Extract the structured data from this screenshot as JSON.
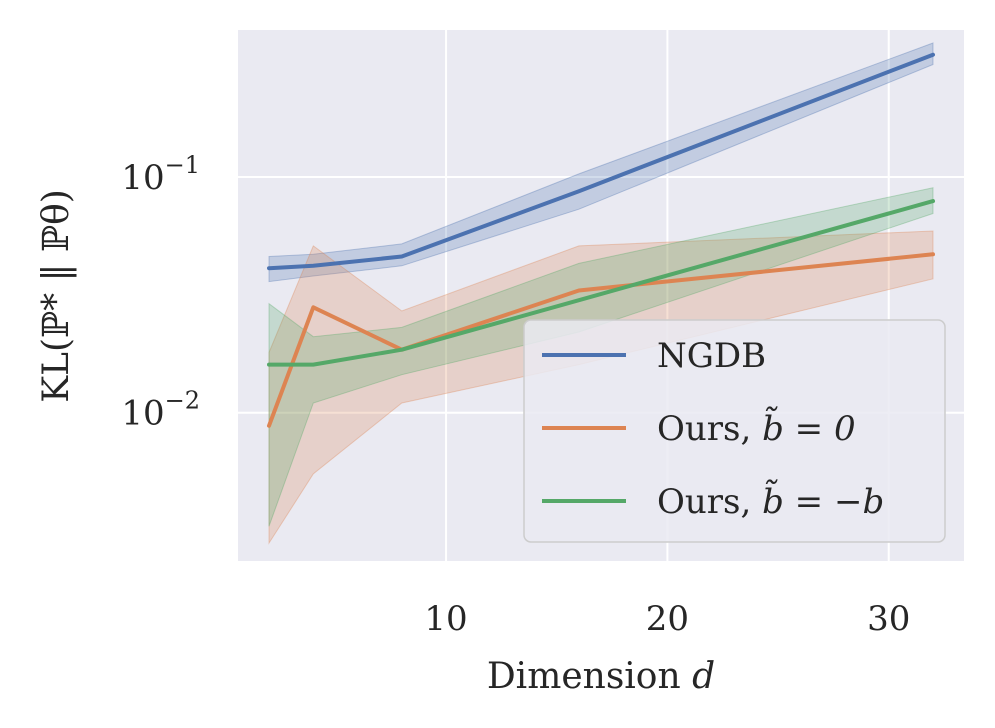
{
  "chart_data": {
    "type": "line",
    "title": "",
    "xlabel": "Dimension",
    "xlabel_var": "d",
    "ylabel": "KL(ℙ* ‖ ℙθ)",
    "yscale": "log",
    "xlim": [
      0.6,
      33.4
    ],
    "ylim": [
      0.00235,
      0.42
    ],
    "xticks": [
      {
        "value": 10,
        "label": "10"
      },
      {
        "value": 20,
        "label": "20"
      },
      {
        "value": 30,
        "label": "30"
      }
    ],
    "yticks": [
      {
        "value": 0.01,
        "base": "10",
        "exp": "−2"
      },
      {
        "value": 0.1,
        "base": "10",
        "exp": "−1"
      }
    ],
    "grid": true,
    "legend_position": "lower-right",
    "x": [
      2,
      4,
      8,
      16,
      32
    ],
    "series": [
      {
        "name": "NGDB",
        "legend_prefix": "NGDB",
        "legend_math": "",
        "color": "#4c72b0",
        "values": [
          0.041,
          0.042,
          0.046,
          0.087,
          0.33
        ],
        "lower": [
          0.036,
          0.038,
          0.042,
          0.073,
          0.3
        ],
        "upper": [
          0.046,
          0.047,
          0.052,
          0.103,
          0.37
        ]
      },
      {
        "name": "Ours, b̃ = 0",
        "legend_prefix": "Ours, ",
        "legend_math": "b̃ = 0",
        "color": "#dd8452",
        "values": [
          0.0088,
          0.028,
          0.0185,
          0.033,
          0.047
        ],
        "lower": [
          0.0028,
          0.0055,
          0.011,
          0.016,
          0.037
        ],
        "upper": [
          0.018,
          0.051,
          0.027,
          0.051,
          0.059
        ]
      },
      {
        "name": "Ours, b̃ = −b",
        "legend_prefix": "Ours, ",
        "legend_math": "b̃ = −b",
        "color": "#55a868",
        "values": [
          0.016,
          0.016,
          0.0185,
          0.03,
          0.079
        ],
        "lower": [
          0.0033,
          0.011,
          0.0145,
          0.022,
          0.07
        ],
        "upper": [
          0.029,
          0.021,
          0.023,
          0.043,
          0.09
        ]
      }
    ]
  }
}
